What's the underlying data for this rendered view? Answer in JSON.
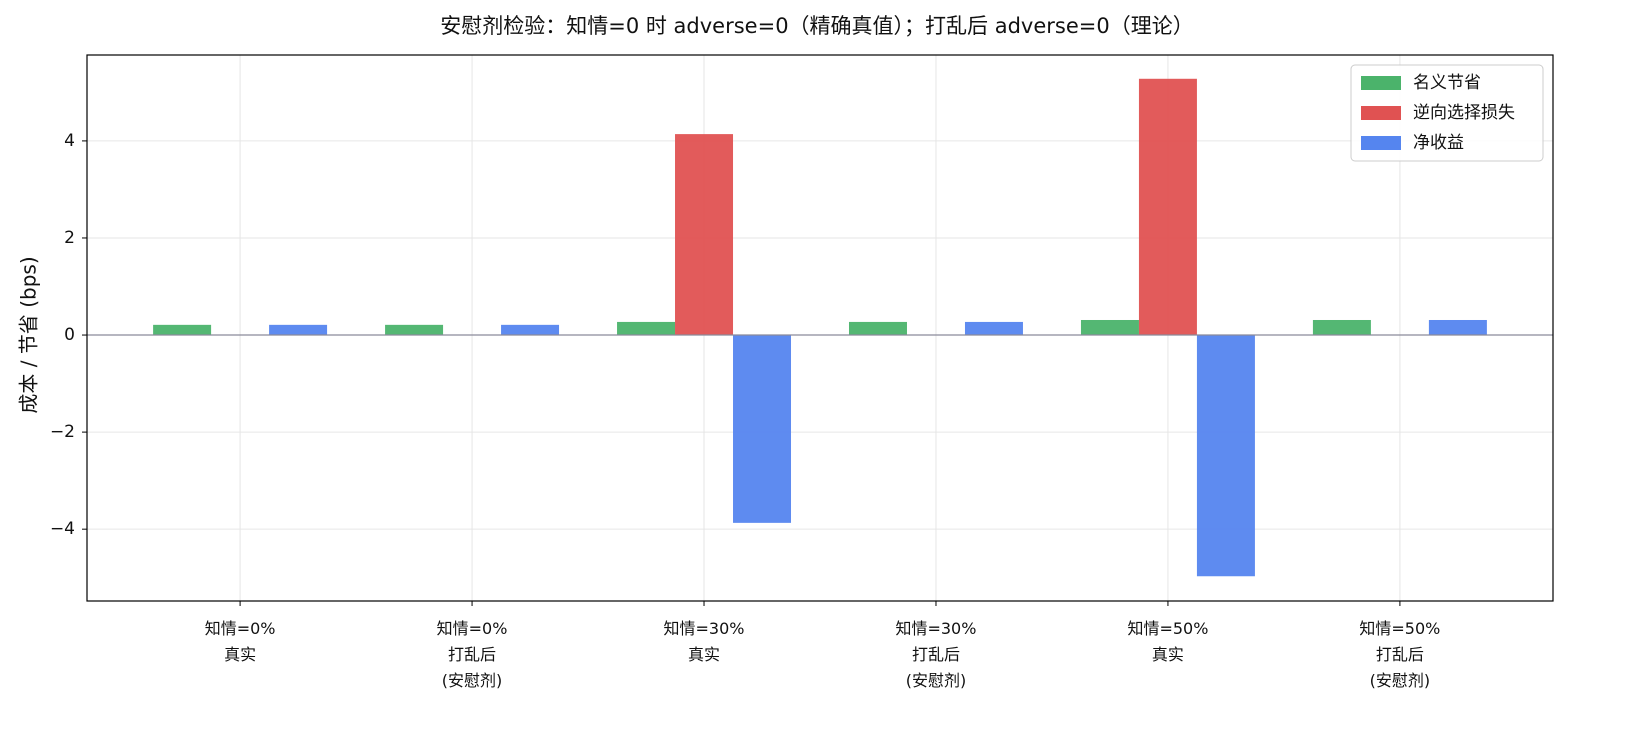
{
  "chart_data": {
    "type": "bar",
    "title": "安慰剂检验：知情=0 时 adverse=0（精确真值）；打乱后 adverse=0（理论）",
    "y_label": "成本 / 节省 (bps)",
    "categories": [
      "知情=0%\n真实",
      "知情=0%\n打乱后\n(安慰剂)",
      "知情=30%\n真实",
      "知情=30%\n打乱后\n(安慰剂)",
      "知情=50%\n真实",
      "知情=50%\n打乱后\n(安慰剂)"
    ],
    "series": [
      {
        "name": "名义节省",
        "color": "#4bb36b",
        "values": [
          0.21,
          0.21,
          0.27,
          0.27,
          0.31,
          0.31
        ]
      },
      {
        "name": "逆向选择损失",
        "color": "#e05252",
        "values": [
          0,
          0,
          4.14,
          0,
          5.28,
          0
        ]
      },
      {
        "name": "净收益",
        "color": "#5585ef",
        "values": [
          0.21,
          0.21,
          -3.87,
          0.27,
          -4.97,
          0.31
        ]
      }
    ],
    "ylim": [
      -5.48,
      5.77
    ],
    "yticks": [
      {
        "value": -4,
        "label": "−4"
      },
      {
        "value": -2,
        "label": "−2"
      },
      0,
      2,
      4
    ],
    "grid": true,
    "legend": "upper right"
  }
}
